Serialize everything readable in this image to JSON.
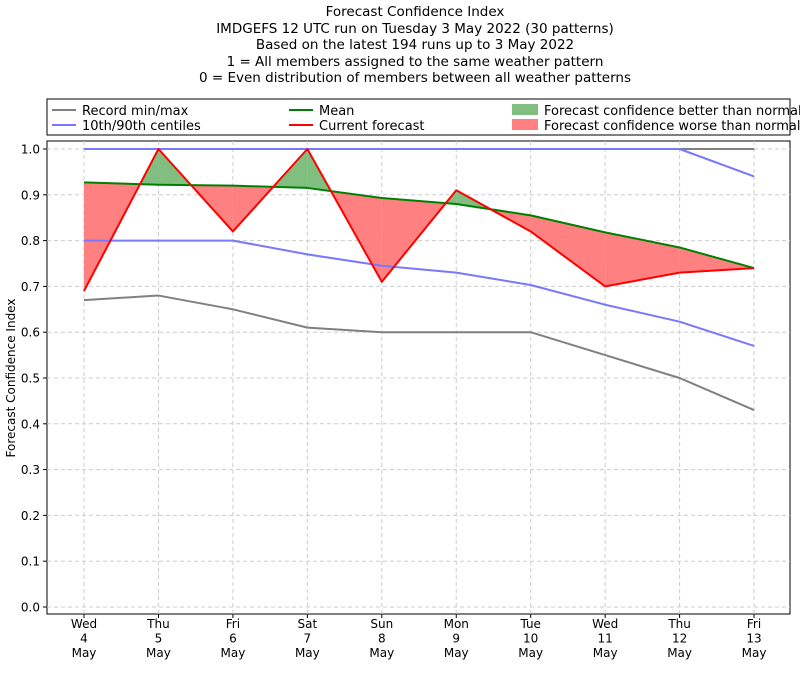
{
  "title_lines": [
    "Forecast Confidence Index",
    "IMDGEFS 12 UTC run on Tuesday 3 May 2022 (30 patterns)",
    "Based on the latest 194 runs up to 3 May 2022",
    "1 = All members assigned to the same weather pattern",
    "0 = Even distribution of members between all weather patterns"
  ],
  "legend": {
    "record": "Record min/max",
    "centiles": "10th/90th centiles",
    "mean": "Mean",
    "current": "Current forecast",
    "better": "Forecast confidence better than normal",
    "worse": "Forecast confidence worse than normal"
  },
  "colors": {
    "record": "#808080",
    "centiles": "#7777ff",
    "mean": "#008000",
    "current": "#ff0000",
    "better_fill": "#80bf80",
    "worse_fill": "#ff8080",
    "grid": "#cccccc"
  },
  "chart_data": {
    "type": "line",
    "ylabel": "Forecast Confidence Index",
    "xlabel": "",
    "ylim": [
      0.0,
      1.0
    ],
    "yticks": [
      "0.0",
      "0.1",
      "0.2",
      "0.3",
      "0.4",
      "0.5",
      "0.6",
      "0.7",
      "0.8",
      "0.9",
      "1.0"
    ],
    "grid": true,
    "legend_position": "top, above plot",
    "categories": [
      [
        "Wed",
        "4",
        "May"
      ],
      [
        "Thu",
        "5",
        "May"
      ],
      [
        "Fri",
        "6",
        "May"
      ],
      [
        "Sat",
        "7",
        "May"
      ],
      [
        "Sun",
        "8",
        "May"
      ],
      [
        "Mon",
        "9",
        "May"
      ],
      [
        "Tue",
        "10",
        "May"
      ],
      [
        "Wed",
        "11",
        "May"
      ],
      [
        "Thu",
        "12",
        "May"
      ],
      [
        "Fri",
        "13",
        "May"
      ]
    ],
    "series": [
      {
        "key": "record_max",
        "name": "Record min/max",
        "values": [
          1.0,
          1.0,
          1.0,
          1.0,
          1.0,
          1.0,
          1.0,
          1.0,
          1.0,
          1.0
        ]
      },
      {
        "key": "record_min",
        "name": "Record min/max",
        "values": [
          0.67,
          0.68,
          0.65,
          0.61,
          0.6,
          0.6,
          0.6,
          0.55,
          0.5,
          0.43
        ]
      },
      {
        "key": "p90",
        "name": "10th/90th centiles",
        "values": [
          1.0,
          1.0,
          1.0,
          1.0,
          1.0,
          1.0,
          1.0,
          1.0,
          1.0,
          0.94
        ]
      },
      {
        "key": "p10",
        "name": "10th/90th centiles",
        "values": [
          0.8,
          0.8,
          0.8,
          0.77,
          0.745,
          0.73,
          0.703,
          0.66,
          0.623,
          0.57
        ]
      },
      {
        "key": "mean",
        "name": "Mean",
        "values": [
          0.927,
          0.922,
          0.92,
          0.915,
          0.893,
          0.88,
          0.855,
          0.818,
          0.785,
          0.74
        ]
      },
      {
        "key": "current",
        "name": "Current forecast",
        "values": [
          0.69,
          1.0,
          0.82,
          1.0,
          0.71,
          0.91,
          0.82,
          0.7,
          0.73,
          0.74
        ]
      }
    ]
  }
}
